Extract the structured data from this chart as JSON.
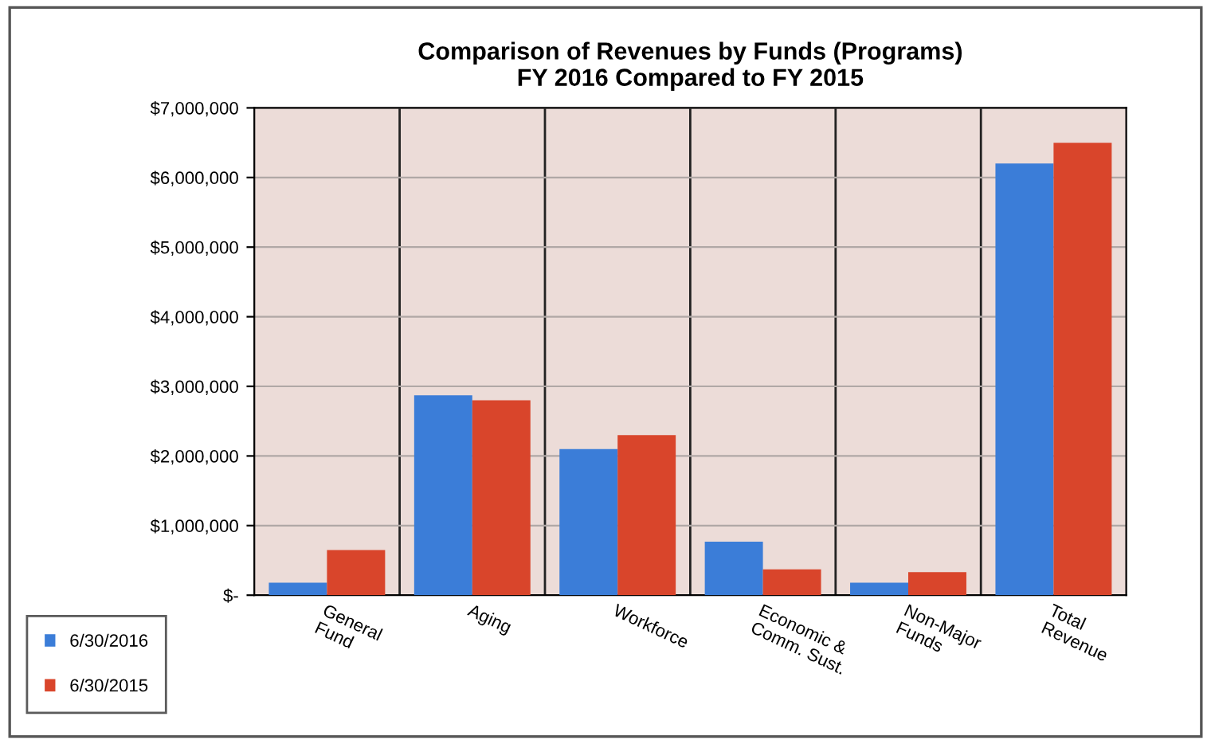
{
  "chart_data": {
    "type": "bar",
    "title": "Comparison of Revenues by Funds (Programs)\nFY 2016 Compared to FY 2015",
    "categories": [
      "General\nFund",
      "Aging",
      "Workforce",
      "Economic &\nComm. Sust.",
      "Non-Major\nFunds",
      "Total\nRevenue"
    ],
    "series": [
      {
        "name": "6/30/2016",
        "color": "#3b7dd8",
        "values": [
          180000,
          2870000,
          2100000,
          770000,
          180000,
          6200000
        ]
      },
      {
        "name": "6/30/2015",
        "color": "#d9452b",
        "values": [
          650000,
          2800000,
          2300000,
          370000,
          330000,
          6500000
        ]
      }
    ],
    "ylim": [
      0,
      7000000
    ],
    "yticks": [
      {
        "value": 0,
        "label": "$-"
      },
      {
        "value": 1000000,
        "label": "$1,000,000"
      },
      {
        "value": 2000000,
        "label": "$2,000,000"
      },
      {
        "value": 3000000,
        "label": "$3,000,000"
      },
      {
        "value": 4000000,
        "label": "$4,000,000"
      },
      {
        "value": 5000000,
        "label": "$5,000,000"
      },
      {
        "value": 6000000,
        "label": "$6,000,000"
      },
      {
        "value": 7000000,
        "label": "$7,000,000"
      }
    ],
    "grid": true,
    "legend": "bottom left"
  }
}
